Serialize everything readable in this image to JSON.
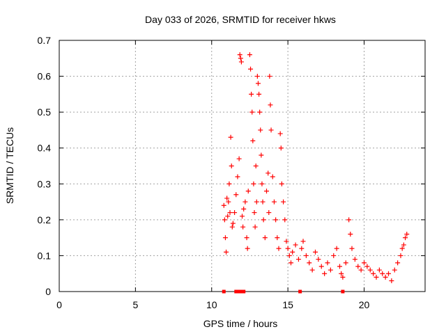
{
  "chart_data": {
    "type": "scatter",
    "title": "Day 033 of 2026, SRMTID for receiver hkws",
    "xlabel": "GPS time / hours",
    "ylabel": "SRMTID / TECUs",
    "xlim": [
      0,
      24
    ],
    "ylim": [
      0,
      0.7
    ],
    "xticks": [
      0,
      5,
      10,
      15,
      20
    ],
    "yticks": [
      0,
      0.1,
      0.2,
      0.3,
      0.4,
      0.5,
      0.6,
      0.7
    ],
    "xtick_labels": [
      "0",
      "5",
      "10",
      "15",
      "20"
    ],
    "ytick_labels": [
      "0",
      "0.1",
      "0.2",
      "0.3",
      "0.4",
      "0.5",
      "0.6",
      "0.7"
    ],
    "grid": true,
    "marker": "+",
    "color": "#ff0000",
    "series": [
      {
        "name": "SRMTID",
        "points": [
          [
            10.8,
            0.24
          ],
          [
            10.85,
            0.2
          ],
          [
            10.9,
            0.15
          ],
          [
            10.95,
            0.11
          ],
          [
            11.0,
            0.26
          ],
          [
            11.05,
            0.21
          ],
          [
            11.1,
            0.25
          ],
          [
            11.15,
            0.3
          ],
          [
            11.2,
            0.22
          ],
          [
            11.25,
            0.43
          ],
          [
            11.3,
            0.35
          ],
          [
            11.35,
            0.18
          ],
          [
            11.4,
            0.19
          ],
          [
            11.5,
            0.22
          ],
          [
            11.6,
            0.27
          ],
          [
            11.7,
            0.32
          ],
          [
            11.8,
            0.37
          ],
          [
            11.85,
            0.66
          ],
          [
            11.9,
            0.65
          ],
          [
            11.95,
            0.64
          ],
          [
            12.0,
            0.21
          ],
          [
            12.05,
            0.18
          ],
          [
            12.1,
            0.23
          ],
          [
            12.2,
            0.25
          ],
          [
            12.3,
            0.15
          ],
          [
            12.35,
            0.12
          ],
          [
            12.4,
            0.28
          ],
          [
            12.5,
            0.66
          ],
          [
            12.55,
            0.62
          ],
          [
            12.6,
            0.55
          ],
          [
            12.65,
            0.5
          ],
          [
            12.7,
            0.42
          ],
          [
            12.75,
            0.3
          ],
          [
            12.8,
            0.22
          ],
          [
            12.85,
            0.18
          ],
          [
            12.9,
            0.35
          ],
          [
            12.95,
            0.25
          ],
          [
            13.0,
            0.6
          ],
          [
            13.05,
            0.58
          ],
          [
            13.1,
            0.55
          ],
          [
            13.15,
            0.5
          ],
          [
            13.2,
            0.45
          ],
          [
            13.25,
            0.38
          ],
          [
            13.3,
            0.3
          ],
          [
            13.35,
            0.25
          ],
          [
            13.4,
            0.2
          ],
          [
            13.5,
            0.15
          ],
          [
            13.6,
            0.28
          ],
          [
            13.7,
            0.33
          ],
          [
            13.75,
            0.22
          ],
          [
            13.8,
            0.6
          ],
          [
            13.85,
            0.52
          ],
          [
            13.9,
            0.45
          ],
          [
            14.0,
            0.32
          ],
          [
            14.1,
            0.25
          ],
          [
            14.2,
            0.2
          ],
          [
            14.3,
            0.15
          ],
          [
            14.4,
            0.12
          ],
          [
            14.5,
            0.44
          ],
          [
            14.55,
            0.4
          ],
          [
            14.6,
            0.3
          ],
          [
            14.7,
            0.25
          ],
          [
            14.8,
            0.2
          ],
          [
            14.9,
            0.14
          ],
          [
            15.0,
            0.12
          ],
          [
            15.1,
            0.1
          ],
          [
            15.2,
            0.08
          ],
          [
            15.3,
            0.11
          ],
          [
            15.5,
            0.13
          ],
          [
            15.7,
            0.09
          ],
          [
            15.9,
            0.12
          ],
          [
            16.0,
            0.14
          ],
          [
            16.2,
            0.1
          ],
          [
            16.4,
            0.08
          ],
          [
            16.6,
            0.06
          ],
          [
            16.8,
            0.11
          ],
          [
            17.0,
            0.09
          ],
          [
            17.2,
            0.07
          ],
          [
            17.4,
            0.05
          ],
          [
            17.6,
            0.08
          ],
          [
            17.8,
            0.06
          ],
          [
            18.0,
            0.1
          ],
          [
            18.2,
            0.12
          ],
          [
            18.4,
            0.07
          ],
          [
            18.5,
            0.05
          ],
          [
            18.6,
            0.04
          ],
          [
            18.8,
            0.08
          ],
          [
            19.0,
            0.2
          ],
          [
            19.1,
            0.16
          ],
          [
            19.2,
            0.12
          ],
          [
            19.4,
            0.09
          ],
          [
            19.6,
            0.07
          ],
          [
            19.8,
            0.06
          ],
          [
            20.0,
            0.08
          ],
          [
            20.2,
            0.07
          ],
          [
            20.4,
            0.06
          ],
          [
            20.6,
            0.05
          ],
          [
            20.8,
            0.04
          ],
          [
            21.0,
            0.06
          ],
          [
            21.2,
            0.05
          ],
          [
            21.4,
            0.04
          ],
          [
            21.6,
            0.05
          ],
          [
            21.8,
            0.03
          ],
          [
            22.0,
            0.06
          ],
          [
            22.2,
            0.08
          ],
          [
            22.4,
            0.1
          ],
          [
            22.5,
            0.12
          ],
          [
            22.6,
            0.13
          ],
          [
            22.7,
            0.15
          ],
          [
            22.8,
            0.16
          ]
        ]
      }
    ],
    "zero_markers_x": [
      10.8,
      11.6,
      11.7,
      11.8,
      12.0,
      12.1,
      15.8,
      18.6
    ]
  }
}
